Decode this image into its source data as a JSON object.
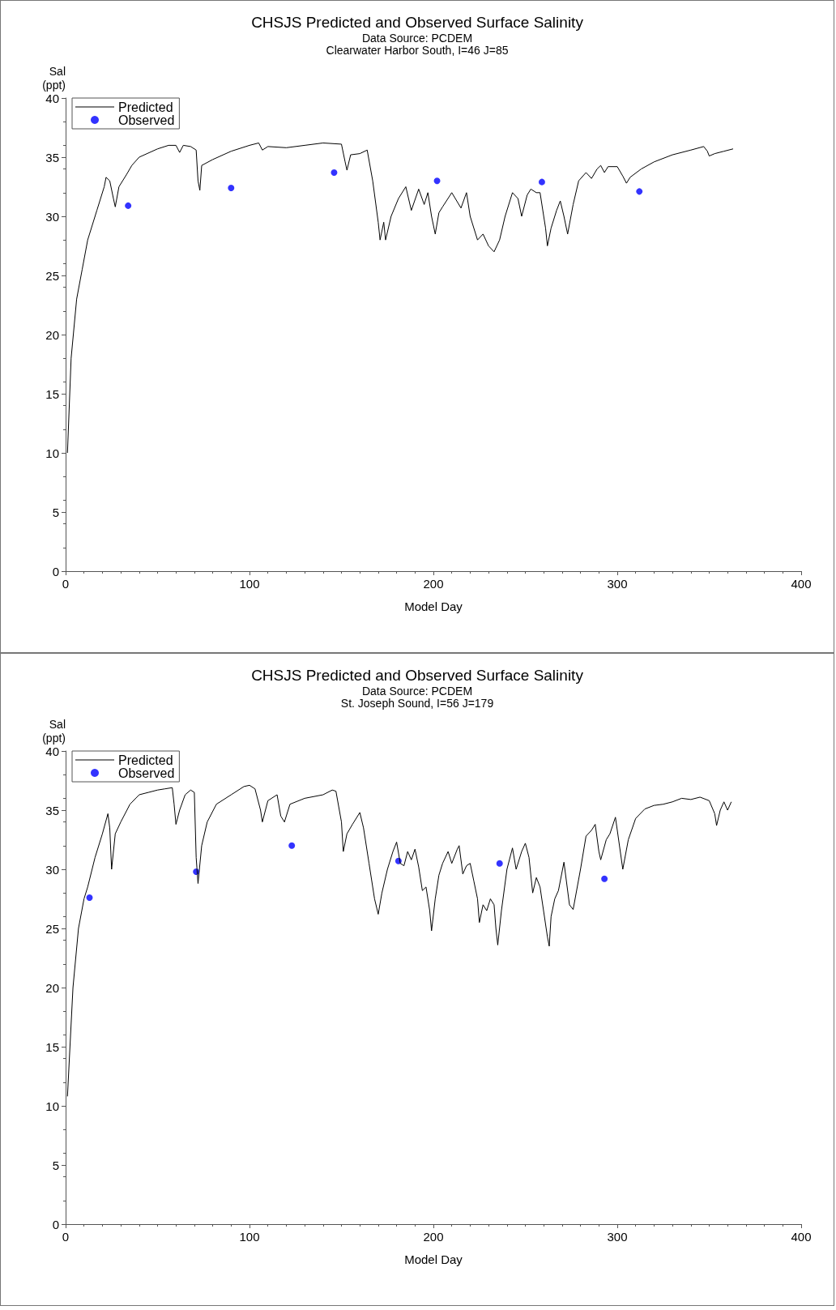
{
  "chart_data": [
    {
      "type": "line",
      "title": "CHSJS Predicted and Observed Surface Salinity",
      "subtitle": "Data Source: PCDEM\nClearwater Harbor South, I=46 J=85",
      "xlabel": "Model Day",
      "ylabel": "Sal\n(ppt)",
      "xlim": [
        0,
        400
      ],
      "xticks": [
        0,
        100,
        200,
        300,
        400
      ],
      "ylim": [
        0,
        40
      ],
      "yticks": [
        0,
        5,
        10,
        15,
        20,
        25,
        30,
        35,
        40
      ],
      "grid": false,
      "legend": "top left",
      "series": [
        {
          "name": "Predicted",
          "color": "#000000",
          "marker": "none",
          "line_style": "solid",
          "x": [
            1,
            3,
            6,
            9,
            12,
            17,
            21,
            22,
            24,
            26,
            27,
            29,
            33,
            36,
            40,
            50,
            56,
            60,
            62,
            64,
            68,
            71,
            72,
            73,
            74,
            80,
            90,
            100,
            105,
            107,
            110,
            120,
            130,
            140,
            150,
            152,
            153,
            155,
            160,
            164,
            167,
            170,
            171,
            173,
            174,
            177,
            181,
            185,
            188,
            192,
            195,
            197,
            199,
            201,
            203,
            205,
            210,
            215,
            218,
            220,
            224,
            227,
            230,
            233,
            236,
            239,
            243,
            246,
            248,
            251,
            253,
            256,
            258,
            261,
            262,
            264,
            267,
            269,
            271,
            273,
            276,
            279,
            283,
            286,
            289,
            291,
            293,
            295,
            300,
            303,
            305,
            307,
            313,
            320,
            330,
            340,
            347,
            349,
            350,
            353,
            358,
            363
          ],
          "values": [
            10,
            18,
            23,
            25.5,
            28,
            30.5,
            32.5,
            33.3,
            33,
            31.5,
            30.8,
            32.5,
            33.5,
            34.3,
            35,
            35.7,
            36,
            36,
            35.4,
            36,
            35.9,
            35.6,
            33,
            32.2,
            34.3,
            34.8,
            35.5,
            36,
            36.2,
            35.6,
            35.9,
            35.8,
            36,
            36.2,
            36.1,
            34.6,
            33.9,
            35.2,
            35.3,
            35.6,
            33,
            29.5,
            28,
            29.5,
            28,
            30,
            31.5,
            32.5,
            30.5,
            32.3,
            31,
            32,
            30,
            28.5,
            30.3,
            30.8,
            32,
            30.7,
            32,
            30,
            28,
            28.5,
            27.5,
            27,
            28,
            30,
            32,
            31.5,
            30,
            31.8,
            32.3,
            32,
            32,
            29,
            27.5,
            29,
            30.5,
            31.3,
            30,
            28.5,
            31,
            33,
            33.7,
            33.2,
            34,
            34.3,
            33.7,
            34.2,
            34.2,
            33.4,
            32.8,
            33.3,
            34,
            34.6,
            35.2,
            35.6,
            35.9,
            35.5,
            35.1,
            35.3,
            35.5,
            35.7
          ]
        },
        {
          "name": "Observed",
          "type": "scatter",
          "color": "#0000ff",
          "marker": "circle",
          "x": [
            34,
            90,
            146,
            202,
            259,
            312
          ],
          "values": [
            30.9,
            32.4,
            33.7,
            33,
            32.9,
            32.1
          ]
        }
      ]
    },
    {
      "type": "line",
      "title": "CHSJS Predicted and Observed Surface Salinity",
      "subtitle": "Data Source: PCDEM\nSt. Joseph Sound, I=56 J=179",
      "xlabel": "Model Day",
      "ylabel": "Sal\n(ppt)",
      "xlim": [
        0,
        400
      ],
      "xticks": [
        0,
        100,
        200,
        300,
        400
      ],
      "ylim": [
        0,
        40
      ],
      "yticks": [
        0,
        5,
        10,
        15,
        20,
        25,
        30,
        35,
        40
      ],
      "grid": false,
      "legend": "top left",
      "series": [
        {
          "name": "Predicted",
          "color": "#000000",
          "marker": "none",
          "line_style": "solid",
          "x": [
            1,
            4,
            7,
            10,
            12,
            16,
            20,
            23,
            24,
            25,
            27,
            30,
            35,
            40,
            45,
            50,
            54,
            58,
            59,
            60,
            62,
            65,
            68,
            70,
            71,
            72,
            74,
            77,
            82,
            90,
            97,
            100,
            103,
            106,
            107,
            110,
            115,
            117,
            119,
            122,
            130,
            140,
            145,
            147,
            150,
            151,
            153,
            156,
            160,
            162,
            165,
            168,
            170,
            172,
            175,
            178,
            180,
            182,
            184,
            186,
            188,
            190,
            192,
            194,
            196,
            198,
            199,
            201,
            203,
            205,
            208,
            210,
            213,
            214,
            216,
            218,
            220,
            222,
            224,
            225,
            227,
            229,
            231,
            233,
            234,
            235,
            237,
            240,
            243,
            245,
            248,
            250,
            252,
            254,
            256,
            258,
            262,
            263,
            264,
            266,
            268,
            271,
            274,
            276,
            280,
            283,
            286,
            288,
            290,
            291,
            294,
            296,
            299,
            303,
            306,
            310,
            315,
            320,
            325,
            330,
            335,
            340,
            345,
            350,
            353,
            354,
            356,
            358,
            360,
            362
          ],
          "values": [
            10.8,
            20,
            25,
            27.5,
            28.5,
            31,
            33,
            34.7,
            33.5,
            30,
            33,
            34,
            35.5,
            36.3,
            36.5,
            36.7,
            36.8,
            36.9,
            35.5,
            33.8,
            35,
            36.3,
            36.7,
            36.5,
            31,
            28.8,
            32,
            34,
            35.5,
            36.3,
            37,
            37.1,
            36.8,
            35,
            34,
            35.8,
            36.3,
            34.5,
            34,
            35.5,
            36,
            36.3,
            36.7,
            36.6,
            34,
            31.5,
            33,
            33.8,
            34.8,
            33.5,
            30.5,
            27.5,
            26.2,
            28,
            30,
            31.5,
            32.3,
            30.5,
            30.3,
            31.5,
            30.8,
            31.7,
            30.2,
            28.2,
            28.5,
            26.5,
            24.8,
            27.5,
            29.5,
            30.5,
            31.5,
            30.5,
            31.7,
            32,
            29.6,
            30.3,
            30.5,
            29,
            27.5,
            25.5,
            27,
            26.5,
            27.5,
            27,
            25,
            23.6,
            26.5,
            30,
            31.8,
            30,
            31.5,
            32.2,
            31,
            28,
            29.3,
            28.5,
            24.3,
            23.5,
            26,
            27.5,
            28.2,
            30.6,
            27,
            26.6,
            30,
            32.8,
            33.3,
            33.8,
            31.5,
            30.8,
            32.5,
            33,
            34.4,
            30,
            32.5,
            34.3,
            35.1,
            35.4,
            35.5,
            35.7,
            36,
            35.9,
            36.1,
            35.8,
            34.7,
            33.7,
            35,
            35.7,
            35,
            35.7
          ]
        },
        {
          "name": "Observed",
          "type": "scatter",
          "color": "#0000ff",
          "marker": "circle",
          "x": [
            13,
            71,
            123,
            181,
            236,
            293
          ],
          "values": [
            27.6,
            29.8,
            32,
            30.7,
            30.5,
            29.2
          ]
        }
      ]
    }
  ]
}
